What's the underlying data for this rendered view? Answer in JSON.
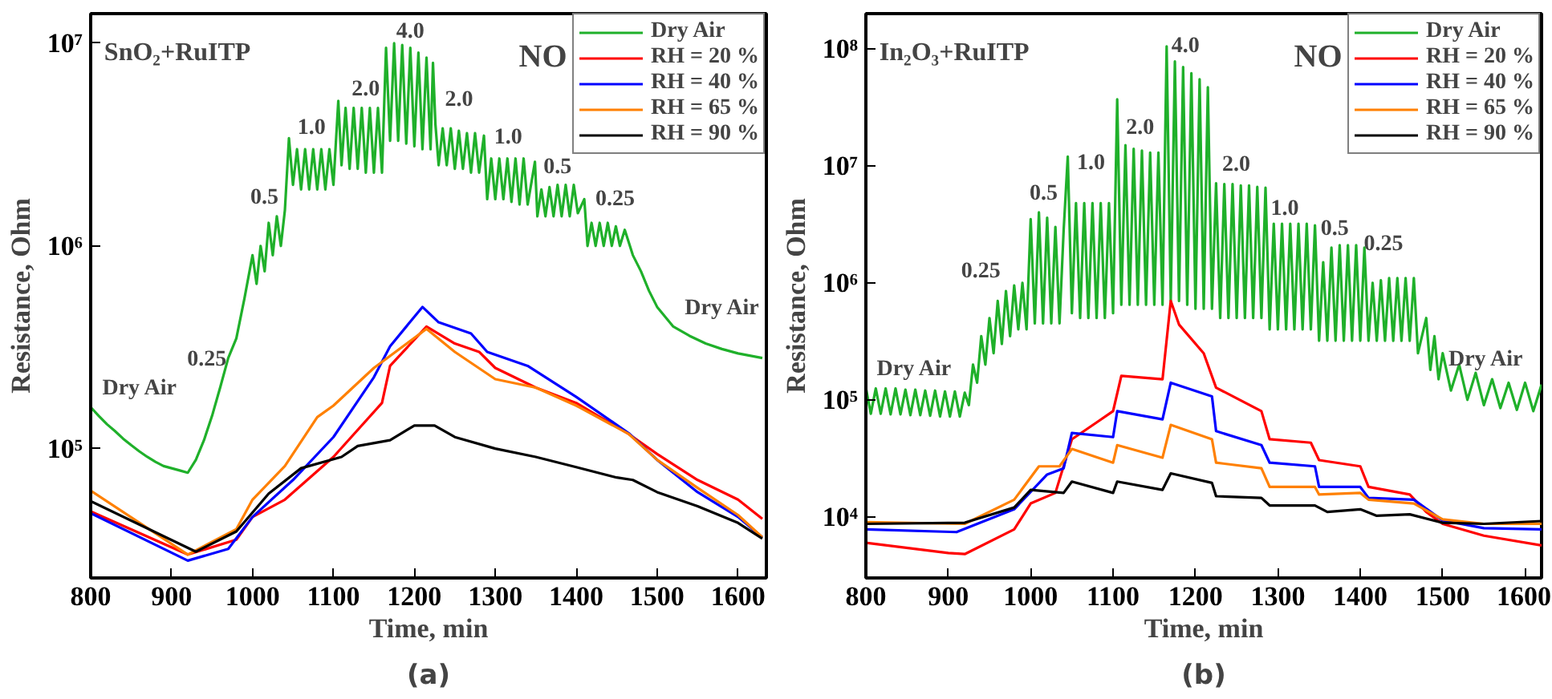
{
  "chart_data": [
    {
      "type": "line",
      "title": "SnO₂+RuITP",
      "subtitle": "NO",
      "xlabel": "Time, min",
      "ylabel": "Resistance, Ohm",
      "xlim": [
        800,
        1635
      ],
      "ylim": [
        23000,
        14000000
      ],
      "log": "y",
      "grid": false,
      "legend": "top right",
      "line_style": "solid",
      "xticks": [
        800,
        900,
        1000,
        1100,
        1200,
        1300,
        1400,
        1500,
        1600
      ],
      "yticks": [
        {
          "value": 100000,
          "label": "10⁵"
        },
        {
          "value": 1000000,
          "label": "10⁶"
        },
        {
          "value": 10000000,
          "label": "10⁷"
        }
      ],
      "series": [
        {
          "name": "Dry Air",
          "color": "#1fb02a",
          "x": [
            800,
            810,
            820,
            830,
            840,
            850,
            860,
            870,
            880,
            890,
            900,
            910,
            920,
            930,
            940,
            950,
            960,
            970,
            980,
            990,
            1000,
            1005,
            1010,
            1015,
            1020,
            1025,
            1030,
            1035,
            1040,
            1045,
            1050,
            1055,
            1060,
            1065,
            1070,
            1075,
            1080,
            1085,
            1090,
            1095,
            1100,
            1106,
            1110,
            1115,
            1120,
            1125,
            1130,
            1135,
            1140,
            1145,
            1150,
            1155,
            1160,
            1165,
            1170,
            1175,
            1180,
            1185,
            1190,
            1195,
            1200,
            1205,
            1210,
            1215,
            1220,
            1223,
            1226,
            1230,
            1235,
            1240,
            1245,
            1250,
            1255,
            1260,
            1265,
            1270,
            1275,
            1280,
            1286,
            1290,
            1295,
            1300,
            1305,
            1310,
            1315,
            1320,
            1325,
            1330,
            1335,
            1340,
            1349,
            1352,
            1357,
            1362,
            1367,
            1372,
            1377,
            1382,
            1387,
            1392,
            1397,
            1402,
            1410,
            1414,
            1419,
            1424,
            1429,
            1434,
            1439,
            1444,
            1449,
            1454,
            1460,
            1470,
            1480,
            1490,
            1500,
            1520,
            1540,
            1560,
            1580,
            1600,
            1630
          ],
          "values": [
            160000,
            145000,
            132000,
            122000,
            112000,
            104000,
            97000,
            91000,
            86000,
            82000,
            80000,
            78000,
            76000,
            88000,
            110000,
            145000,
            200000,
            280000,
            350000,
            550000,
            900000,
            650000,
            1000000,
            750000,
            1300000,
            900000,
            1400000,
            1000000,
            1500000,
            3400000,
            2000000,
            3000000,
            1900000,
            3000000,
            1900000,
            3000000,
            1900000,
            3000000,
            1900000,
            3000000,
            2000000,
            5200000,
            2500000,
            4800000,
            2400000,
            4800000,
            2400000,
            4800000,
            2300000,
            4800000,
            2300000,
            4800000,
            2300000,
            9500000,
            3300000,
            10000000,
            3300000,
            9800000,
            3200000,
            9500000,
            3100000,
            9000000,
            3000000,
            8500000,
            3000000,
            8000000,
            4000000,
            2500000,
            3800000,
            2500000,
            3800000,
            2400000,
            3700000,
            2400000,
            3600000,
            2300000,
            3600000,
            2300000,
            3500000,
            1700000,
            2700000,
            1700000,
            2700000,
            1700000,
            2700000,
            1650000,
            2700000,
            1600000,
            2700000,
            1600000,
            2600000,
            1400000,
            1900000,
            1400000,
            1950000,
            1400000,
            2000000,
            1400000,
            2000000,
            1400000,
            2000000,
            1450000,
            1700000,
            1000000,
            1300000,
            1000000,
            1300000,
            1000000,
            1300000,
            1000000,
            1250000,
            1000000,
            1200000,
            900000,
            750000,
            600000,
            500000,
            400000,
            360000,
            330000,
            310000,
            295000,
            280000
          ]
        },
        {
          "name": "RH = 20 %",
          "color": "#ff0000",
          "x": [
            800,
            920,
            980,
            1000,
            1040,
            1100,
            1160,
            1170,
            1215,
            1250,
            1280,
            1300,
            1350,
            1400,
            1465,
            1500,
            1550,
            1600,
            1630
          ],
          "values": [
            49000,
            30000,
            35500,
            46000,
            56000,
            91000,
            168000,
            256000,
            400000,
            330000,
            300000,
            250000,
            200000,
            168000,
            118000,
            94000,
            70000,
            56000,
            45000
          ]
        },
        {
          "name": "RH = 40 %",
          "color": "#0000ff",
          "x": [
            800,
            920,
            970,
            1000,
            1050,
            1100,
            1150,
            1170,
            1210,
            1230,
            1270,
            1290,
            1340,
            1400,
            1465,
            1500,
            1550,
            1600,
            1630
          ],
          "values": [
            48000,
            28000,
            32000,
            46000,
            70000,
            114000,
            225000,
            320000,
            500000,
            420000,
            370000,
            300000,
            256000,
            180000,
            119000,
            88000,
            61000,
            46000,
            36500
          ]
        },
        {
          "name": "RH = 65 %",
          "color": "#ff8000",
          "x": [
            800,
            920,
            980,
            1000,
            1040,
            1080,
            1100,
            1150,
            1215,
            1250,
            1300,
            1350,
            1400,
            1465,
            1500,
            1550,
            1600,
            1630
          ],
          "values": [
            62000,
            30000,
            40000,
            56000,
            82000,
            143000,
            163000,
            250000,
            390000,
            300000,
            220000,
            200000,
            163000,
            118000,
            88000,
            64000,
            47000,
            36500
          ]
        },
        {
          "name": "RH = 90 %",
          "color": "#000000",
          "x": [
            800,
            930,
            980,
            1020,
            1060,
            1110,
            1130,
            1170,
            1200,
            1225,
            1250,
            1300,
            1350,
            1400,
            1450,
            1470,
            1500,
            1550,
            1600,
            1630
          ],
          "values": [
            55000,
            31000,
            39000,
            60000,
            80000,
            91000,
            103000,
            110000,
            130000,
            130000,
            114000,
            100000,
            91000,
            81000,
            72000,
            70000,
            61000,
            52000,
            43000,
            36000
          ]
        }
      ],
      "annotations": [
        "(a)",
        "Dry Air",
        "0.25",
        "0.5",
        "1.0",
        "2.0",
        "4.0",
        "2.0",
        "1.0",
        "0.5",
        "0.25",
        "Dry Air"
      ]
    },
    {
      "type": "line",
      "title": "In₂O₃+RuITP",
      "subtitle": "NO",
      "xlabel": "Time, min",
      "ylabel": "Resistance, Ohm",
      "xlim": [
        800,
        1620
      ],
      "ylim": [
        3000,
        200000000
      ],
      "log": "y",
      "grid": false,
      "legend": "top right",
      "line_style": "solid",
      "xticks": [
        800,
        900,
        1000,
        1100,
        1200,
        1300,
        1400,
        1500,
        1600
      ],
      "yticks": [
        {
          "value": 10000,
          "label": "10⁴"
        },
        {
          "value": 100000,
          "label": "10⁵"
        },
        {
          "value": 1000000,
          "label": "10⁶"
        },
        {
          "value": 10000000,
          "label": "10⁷"
        },
        {
          "value": 100000000,
          "label": "10⁸"
        }
      ],
      "series": [
        {
          "name": "Dry Air",
          "color": "#1fb02a",
          "x": [
            800,
            806,
            812,
            818,
            824,
            830,
            836,
            842,
            848,
            854,
            860,
            866,
            872,
            878,
            884,
            890,
            896,
            902,
            908,
            914,
            920,
            925,
            930,
            935,
            940,
            945,
            950,
            955,
            960,
            965,
            970,
            975,
            980,
            985,
            990,
            995,
            1000,
            1005,
            1010,
            1015,
            1020,
            1025,
            1030,
            1035,
            1040,
            1045,
            1050,
            1055,
            1060,
            1065,
            1070,
            1075,
            1080,
            1085,
            1090,
            1095,
            1100,
            1105,
            1110,
            1115,
            1120,
            1125,
            1130,
            1135,
            1140,
            1145,
            1150,
            1155,
            1160,
            1165,
            1170,
            1175,
            1180,
            1185,
            1190,
            1195,
            1200,
            1205,
            1210,
            1215,
            1220,
            1225,
            1230,
            1235,
            1240,
            1245,
            1250,
            1255,
            1260,
            1265,
            1270,
            1275,
            1280,
            1285,
            1290,
            1295,
            1300,
            1305,
            1310,
            1315,
            1320,
            1325,
            1330,
            1335,
            1340,
            1345,
            1350,
            1355,
            1360,
            1365,
            1370,
            1375,
            1380,
            1385,
            1390,
            1395,
            1400,
            1405,
            1410,
            1415,
            1420,
            1425,
            1430,
            1435,
            1440,
            1445,
            1450,
            1455,
            1460,
            1465,
            1470,
            1480,
            1485,
            1490,
            1495,
            1500,
            1510,
            1520,
            1530,
            1540,
            1550,
            1560,
            1570,
            1580,
            1590,
            1600,
            1610,
            1620
          ],
          "values": [
            127000,
            76000,
            125000,
            76000,
            125000,
            75000,
            125000,
            75000,
            122000,
            74000,
            122000,
            74000,
            120000,
            73000,
            120000,
            72000,
            118000,
            72000,
            118000,
            72000,
            115000,
            90000,
            200000,
            140000,
            350000,
            200000,
            500000,
            250000,
            700000,
            300000,
            850000,
            350000,
            950000,
            400000,
            1000000,
            400000,
            3500000,
            450000,
            4000000,
            450000,
            3600000,
            450000,
            3000000,
            450000,
            2800000,
            12000000,
            550000,
            4800000,
            500000,
            4800000,
            500000,
            4800000,
            500000,
            4800000,
            500000,
            4800000,
            550000,
            37000000,
            650000,
            15000000,
            650000,
            14000000,
            650000,
            13500000,
            650000,
            13000000,
            650000,
            13000000,
            650000,
            105000000,
            700000,
            78000000,
            700000,
            70000000,
            650000,
            62000000,
            600000,
            55000000,
            600000,
            47000000,
            600000,
            7100000,
            500000,
            7000000,
            500000,
            7000000,
            500000,
            6800000,
            500000,
            6800000,
            500000,
            6600000,
            500000,
            6500000,
            400000,
            3200000,
            400000,
            3200000,
            400000,
            3200000,
            400000,
            3200000,
            400000,
            3200000,
            400000,
            3100000,
            320000,
            1500000,
            320000,
            2000000,
            320000,
            2100000,
            320000,
            2100000,
            320000,
            2100000,
            320000,
            2000000,
            320000,
            1000000,
            320000,
            1050000,
            320000,
            1100000,
            320000,
            1100000,
            320000,
            1100000,
            320000,
            1100000,
            250000,
            500000,
            180000,
            350000,
            150000,
            250000,
            120000,
            200000,
            100000,
            170000,
            90000,
            150000,
            85000,
            140000,
            82000,
            140000,
            80000,
            135000
          ]
        },
        {
          "name": "RH = 20 %",
          "color": "#ff0000",
          "x": [
            800,
            900,
            920,
            980,
            1000,
            1030,
            1050,
            1080,
            1100,
            1110,
            1160,
            1170,
            1180,
            1210,
            1225,
            1280,
            1290,
            1340,
            1350,
            1400,
            1410,
            1460,
            1480,
            1500,
            1550,
            1620
          ],
          "values": [
            6000,
            4900,
            4800,
            7800,
            13000,
            16000,
            46000,
            64000,
            80000,
            160000,
            150000,
            700000,
            440000,
            250000,
            127000,
            80000,
            46000,
            43000,
            30500,
            27000,
            18000,
            15500,
            11000,
            8700,
            6900,
            5700
          ]
        },
        {
          "name": "RH = 40 %",
          "color": "#0000ff",
          "x": [
            800,
            910,
            980,
            1020,
            1040,
            1050,
            1100,
            1105,
            1160,
            1170,
            1220,
            1225,
            1280,
            1290,
            1345,
            1350,
            1400,
            1410,
            1465,
            1500,
            1550,
            1620
          ],
          "values": [
            7800,
            7400,
            11600,
            23000,
            26000,
            52000,
            48000,
            80000,
            68000,
            140000,
            107000,
            54000,
            41000,
            29000,
            27000,
            18000,
            18000,
            14500,
            14000,
            9300,
            8000,
            7800
          ]
        },
        {
          "name": "RH = 65 %",
          "color": "#ff8000",
          "x": [
            800,
            920,
            980,
            1010,
            1035,
            1050,
            1100,
            1105,
            1160,
            1170,
            1220,
            1225,
            1280,
            1290,
            1345,
            1350,
            1400,
            1410,
            1465,
            1500,
            1550,
            1620
          ],
          "values": [
            9000,
            8700,
            14000,
            27000,
            27000,
            38000,
            29000,
            41000,
            32000,
            61000,
            46000,
            29000,
            26000,
            18000,
            18000,
            15500,
            16000,
            14000,
            13000,
            9500,
            8700,
            8700
          ]
        },
        {
          "name": "RH = 90 %",
          "color": "#000000",
          "x": [
            800,
            920,
            980,
            1000,
            1040,
            1050,
            1100,
            1105,
            1160,
            1170,
            1220,
            1225,
            1280,
            1290,
            1345,
            1360,
            1400,
            1420,
            1460,
            1500,
            1550,
            1620
          ],
          "values": [
            8700,
            8900,
            12000,
            17000,
            16000,
            20000,
            16000,
            20000,
            17000,
            23500,
            19500,
            15000,
            14500,
            12500,
            12500,
            11000,
            11600,
            10200,
            10500,
            8900,
            8700,
            9200
          ]
        }
      ],
      "annotations": [
        "(b)",
        "Dry Air",
        "0.25",
        "0.5",
        "1.0",
        "2.0",
        "4.0",
        "2.0",
        "1.0",
        "0.5",
        "0.25",
        "Dry Air"
      ]
    }
  ]
}
